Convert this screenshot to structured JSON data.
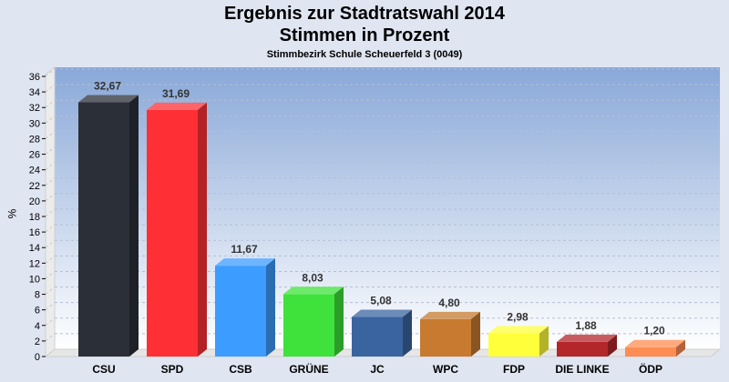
{
  "header": {
    "title_line1": "Ergebnis zur Stadtratswahl 2014",
    "title_line2": "Stimmen in Prozent",
    "subtitle": "Stimmbezirk Schule Scheuerfeld 3 (0049)"
  },
  "chart_data": {
    "type": "bar",
    "ylabel": "%",
    "xlabel": "",
    "ylim": [
      0,
      36
    ],
    "yticks": [
      0,
      2,
      4,
      6,
      8,
      10,
      12,
      14,
      16,
      18,
      20,
      22,
      24,
      26,
      28,
      30,
      32,
      34,
      36
    ],
    "grid": true,
    "categories": [
      "CSU",
      "SPD",
      "CSB",
      "GRÜNE",
      "JC",
      "WPC",
      "FDP",
      "DIE LINKE",
      "ÖDP"
    ],
    "values": [
      32.67,
      31.69,
      11.67,
      8.03,
      5.08,
      4.8,
      2.98,
      1.88,
      1.2
    ],
    "value_labels": [
      "32,67",
      "31,69",
      "11,67",
      "8,03",
      "5,08",
      "4,80",
      "2,98",
      "1,88",
      "1,20"
    ],
    "colors": [
      "#2b2f38",
      "#ff3035",
      "#3c9cff",
      "#3ee23a",
      "#3a64a0",
      "#c77a30",
      "#ffff3a",
      "#b3262a",
      "#ff8c52"
    ]
  }
}
